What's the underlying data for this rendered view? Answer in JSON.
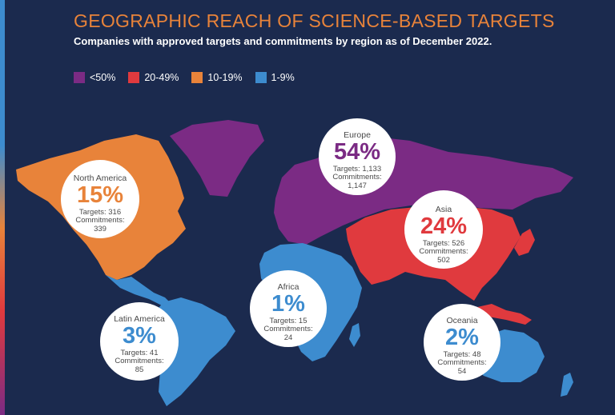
{
  "title": "GEOGRAPHIC REACH OF SCIENCE-BASED TARGETS",
  "subtitle": "Companies with approved targets and commitments by region as of December 2022.",
  "legend": [
    {
      "label": "<50%",
      "color": "#7b2b84"
    },
    {
      "label": "20-49%",
      "color": "#e03a3e"
    },
    {
      "label": "10-19%",
      "color": "#e8833a"
    },
    {
      "label": "1-9%",
      "color": "#3d8ccf"
    }
  ],
  "regions": {
    "north_america": {
      "name": "North America",
      "pct": "15%",
      "targets": "Targets: 316",
      "commitments": "Commitments:",
      "commitments_value": "339",
      "color": "#e8833a"
    },
    "europe": {
      "name": "Europe",
      "pct": "54%",
      "targets": "Targets: 1,133",
      "commitments": "Commitments:",
      "commitments_value": "1,147",
      "color": "#7b2b84"
    },
    "asia": {
      "name": "Asia",
      "pct": "24%",
      "targets": "Targets: 526",
      "commitments": "Commitments:",
      "commitments_value": "502",
      "color": "#e03a3e"
    },
    "africa": {
      "name": "Africa",
      "pct": "1%",
      "targets": "Targets: 15",
      "commitments": "Commitments:",
      "commitments_value": "24",
      "color": "#3d8ccf"
    },
    "latin_america": {
      "name": "Latin America",
      "pct": "3%",
      "targets": "Targets: 41",
      "commitments": "Commitments:",
      "commitments_value": "85",
      "color": "#3d8ccf"
    },
    "oceania": {
      "name": "Oceania",
      "pct": "2%",
      "targets": "Targets: 48",
      "commitments": "Commitments:",
      "commitments_value": "54",
      "color": "#3d8ccf"
    }
  }
}
